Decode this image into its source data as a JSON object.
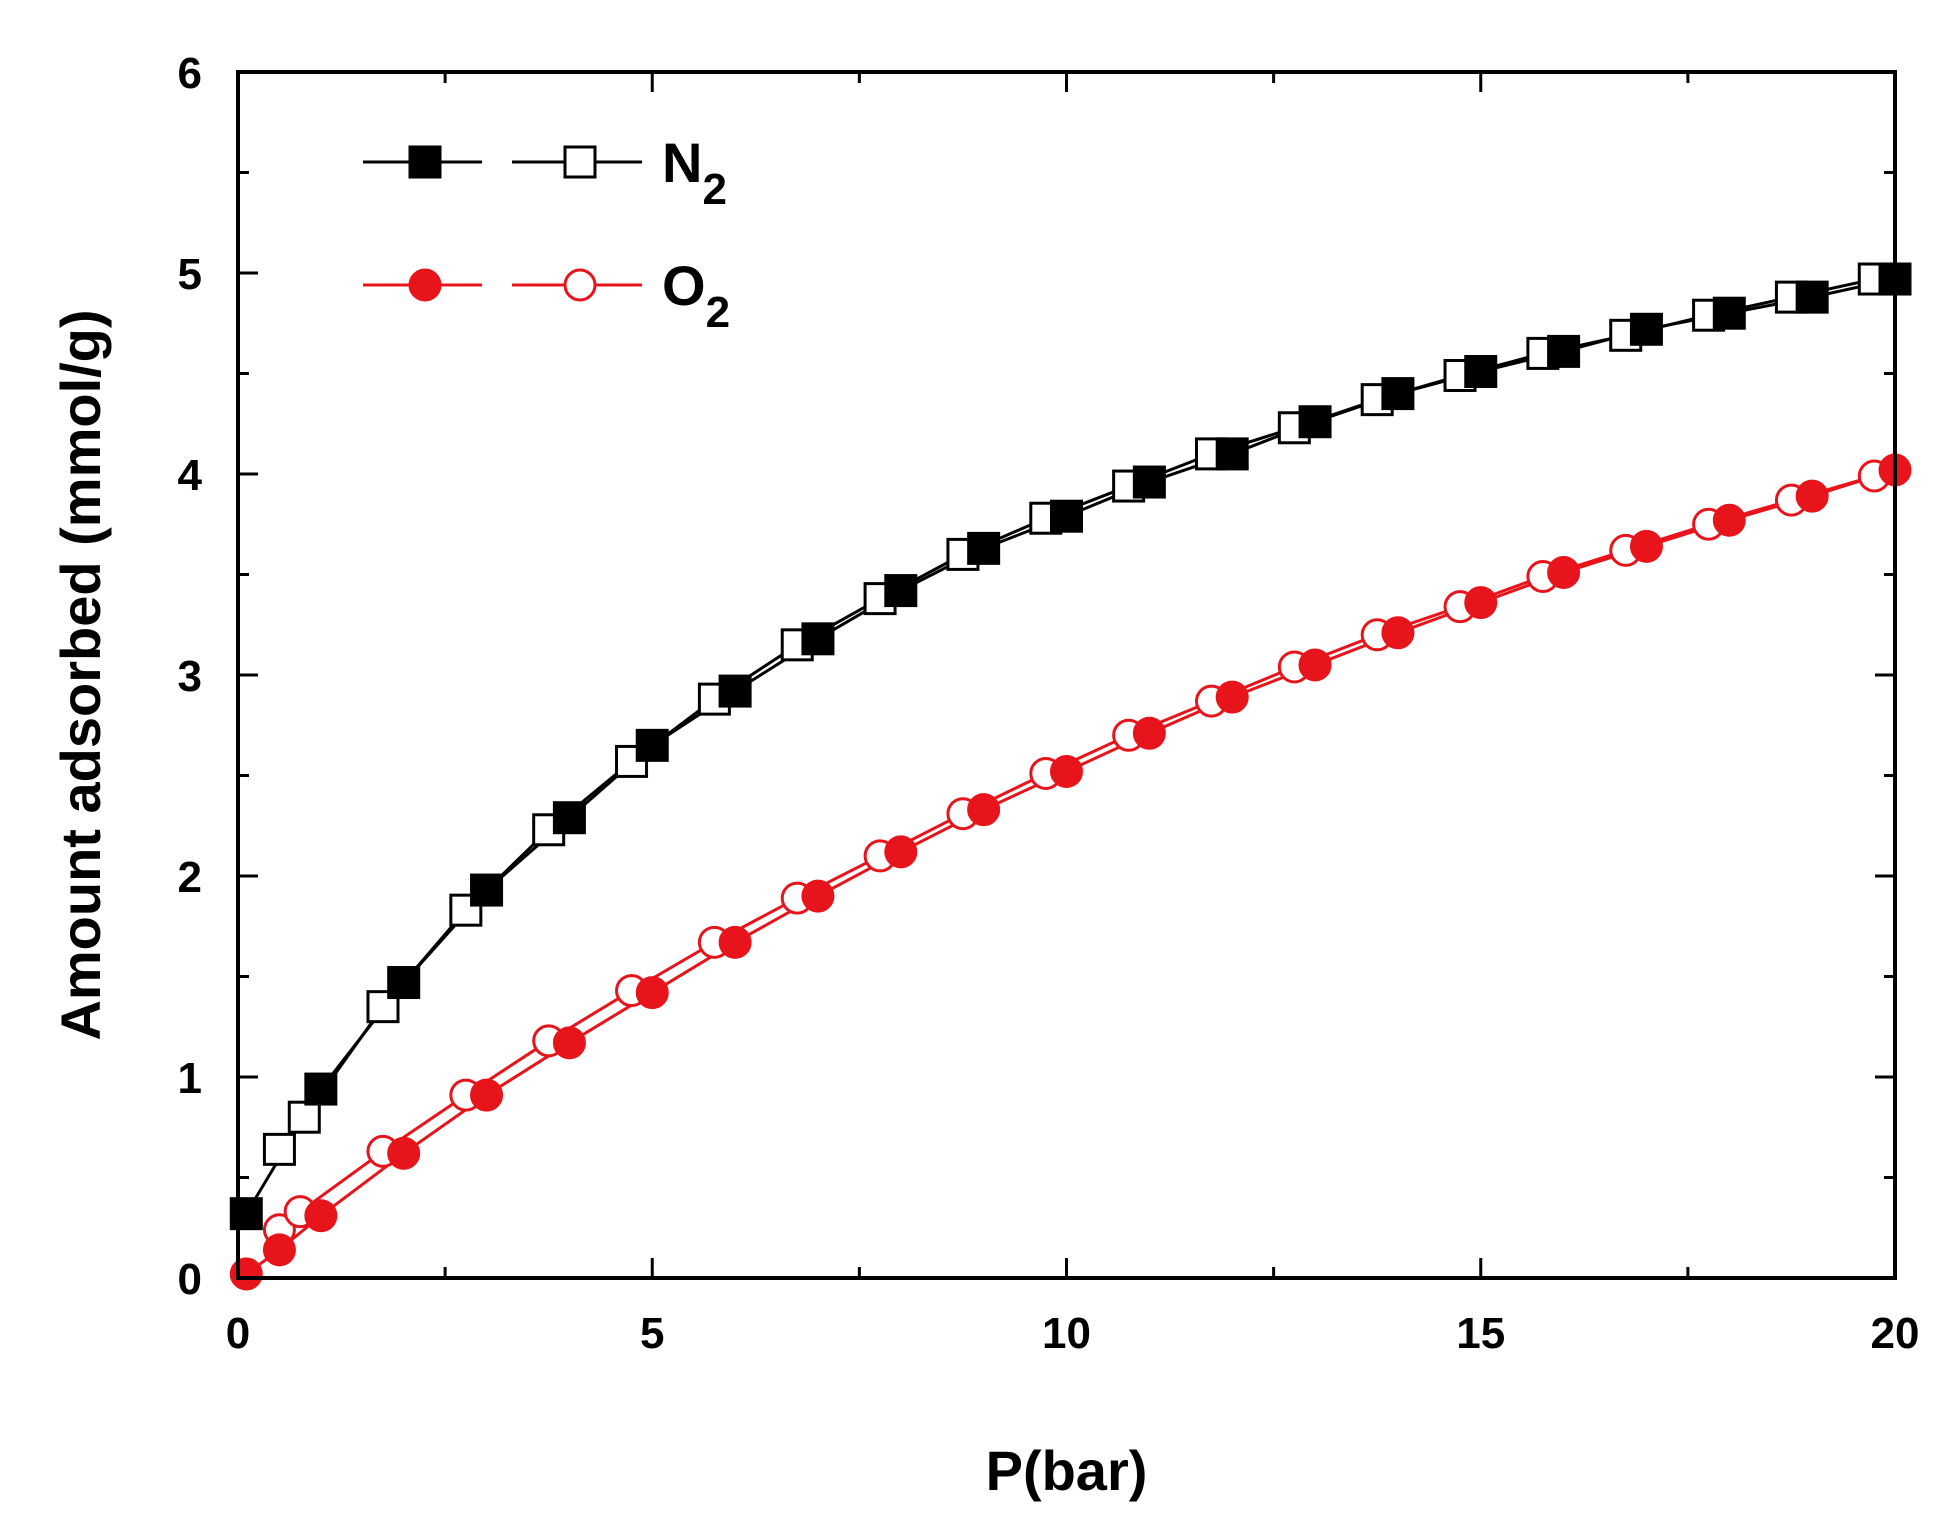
{
  "chart_data": {
    "type": "scatter",
    "xlabel": "P(bar)",
    "ylabel": "Amount adsorbed (mmol/g)",
    "xlim": [
      0,
      20
    ],
    "ylim": [
      0,
      6
    ],
    "xticks": [
      0,
      5,
      10,
      15,
      20
    ],
    "yticks": [
      0,
      1,
      2,
      3,
      4,
      5,
      6
    ],
    "x_minor_step": 2.5,
    "y_minor_step": 0.5,
    "grid": false,
    "legend_position": "top-left",
    "series": [
      {
        "name": "N",
        "name_subscript": "2",
        "color": "#000000",
        "marker": "square",
        "adsorption": {
          "x": [
            0.1,
            1.0,
            2.0,
            3.0,
            4.0,
            5.0,
            6.0,
            7.0,
            8.0,
            9.0,
            10.0,
            11.0,
            12.0,
            13.0,
            14.0,
            15.0,
            16.0,
            17.0,
            18.0,
            19.0,
            20.0
          ],
          "y": [
            0.32,
            0.94,
            1.47,
            1.93,
            2.29,
            2.65,
            2.92,
            3.18,
            3.42,
            3.63,
            3.79,
            3.96,
            4.1,
            4.26,
            4.4,
            4.51,
            4.61,
            4.72,
            4.8,
            4.88,
            4.97
          ]
        },
        "desorption": {
          "x": [
            0.5,
            0.8,
            1.75,
            2.75,
            3.75,
            4.75,
            5.75,
            6.75,
            7.75,
            8.75,
            9.75,
            10.75,
            11.75,
            12.75,
            13.75,
            14.75,
            15.75,
            16.75,
            17.75,
            18.75,
            19.75
          ],
          "y": [
            0.64,
            0.8,
            1.35,
            1.83,
            2.23,
            2.57,
            2.88,
            3.15,
            3.38,
            3.6,
            3.78,
            3.94,
            4.1,
            4.23,
            4.37,
            4.49,
            4.6,
            4.69,
            4.79,
            4.88,
            4.97
          ]
        }
      },
      {
        "name": "O",
        "name_subscript": "2",
        "color": "#e8141b",
        "marker": "circle",
        "adsorption": {
          "x": [
            0.1,
            0.5,
            1.0,
            2.0,
            3.0,
            4.0,
            5.0,
            6.0,
            7.0,
            8.0,
            9.0,
            10.0,
            11.0,
            12.0,
            13.0,
            14.0,
            15.0,
            16.0,
            17.0,
            18.0,
            19.0,
            20.0
          ],
          "y": [
            0.02,
            0.14,
            0.31,
            0.62,
            0.91,
            1.17,
            1.42,
            1.67,
            1.9,
            2.12,
            2.33,
            2.52,
            2.71,
            2.89,
            3.05,
            3.21,
            3.36,
            3.51,
            3.64,
            3.77,
            3.89,
            4.02
          ]
        },
        "desorption": {
          "x": [
            0.5,
            0.75,
            1.75,
            2.75,
            3.75,
            4.75,
            5.75,
            6.75,
            7.75,
            8.75,
            9.75,
            10.75,
            11.75,
            12.75,
            13.75,
            14.75,
            15.75,
            16.75,
            17.75,
            18.75,
            19.75
          ],
          "y": [
            0.24,
            0.33,
            0.63,
            0.91,
            1.18,
            1.43,
            1.67,
            1.89,
            2.1,
            2.31,
            2.51,
            2.7,
            2.87,
            3.04,
            3.2,
            3.34,
            3.49,
            3.62,
            3.75,
            3.87,
            3.99
          ]
        }
      }
    ]
  }
}
